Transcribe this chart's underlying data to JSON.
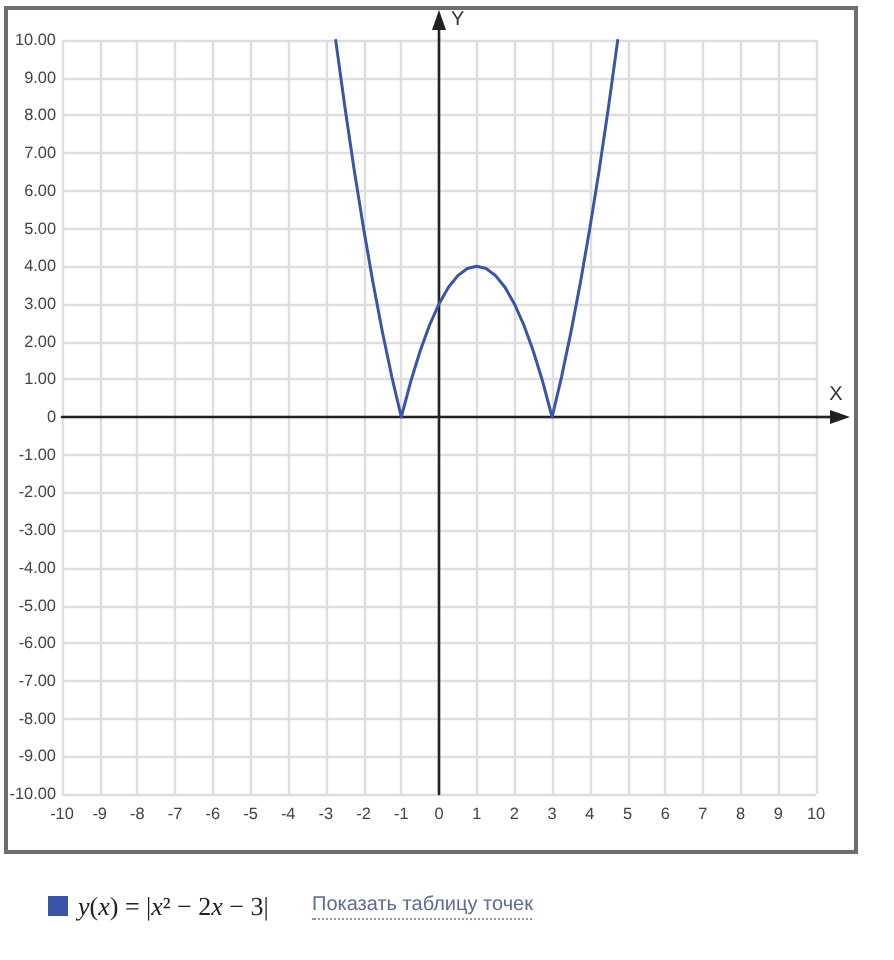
{
  "chart_data": {
    "type": "line",
    "xlabel": "X",
    "ylabel": "Y",
    "x": [
      -2.74,
      -2.5,
      -2.25,
      -2,
      -1.75,
      -1.5,
      -1.25,
      -1,
      -0.75,
      -0.5,
      -0.25,
      0,
      0.25,
      0.5,
      0.75,
      1,
      1.25,
      1.5,
      1.75,
      2,
      2.25,
      2.5,
      2.75,
      3,
      3.25,
      3.5,
      3.75,
      4,
      4.25,
      4.5,
      4.74
    ],
    "series": [
      {
        "name": "y(x) = |x² − 2x − 3|",
        "color": "#3a55a8",
        "values": [
          9.99,
          8.25,
          6.56,
          5,
          3.56,
          2.25,
          1.06,
          0,
          0.94,
          1.75,
          2.44,
          3,
          3.44,
          3.75,
          3.94,
          4,
          3.94,
          3.75,
          3.44,
          3,
          2.44,
          1.75,
          0.94,
          0,
          1.06,
          2.25,
          3.56,
          5,
          6.56,
          8.25,
          9.99
        ]
      }
    ],
    "xlim": [
      -10,
      10
    ],
    "ylim": [
      -10,
      10
    ],
    "xticks": [
      -10,
      -9,
      -8,
      -7,
      -6,
      -5,
      -4,
      -3,
      -2,
      -1,
      0,
      1,
      2,
      3,
      4,
      5,
      6,
      7,
      8,
      9,
      10
    ],
    "yticks": [
      {
        "value": -10,
        "label": "-10.00"
      },
      {
        "value": -9,
        "label": "-9.00"
      },
      {
        "value": -8,
        "label": "-8.00"
      },
      {
        "value": -7,
        "label": "-7.00"
      },
      {
        "value": -6,
        "label": "-6.00"
      },
      {
        "value": -5,
        "label": "-5.00"
      },
      {
        "value": -4,
        "label": "-4.00"
      },
      {
        "value": -3,
        "label": "-3.00"
      },
      {
        "value": -2,
        "label": "-2.00"
      },
      {
        "value": -1,
        "label": "-1.00"
      },
      0,
      {
        "value": 1,
        "label": "1.00"
      },
      {
        "value": 2,
        "label": "2.00"
      },
      {
        "value": 3,
        "label": "3.00"
      },
      {
        "value": 4,
        "label": "4.00"
      },
      {
        "value": 5,
        "label": "5.00"
      },
      {
        "value": 6,
        "label": "6.00"
      },
      {
        "value": 7,
        "label": "7.00"
      },
      {
        "value": 8,
        "label": "8.00"
      },
      {
        "value": 9,
        "label": "9.00"
      },
      {
        "value": 10,
        "label": "10.00"
      }
    ],
    "grid": true,
    "legend": "bottom left",
    "marker": "none",
    "line_style": "solid",
    "annotations": [
      "Показать таблицу точек"
    ]
  }
}
